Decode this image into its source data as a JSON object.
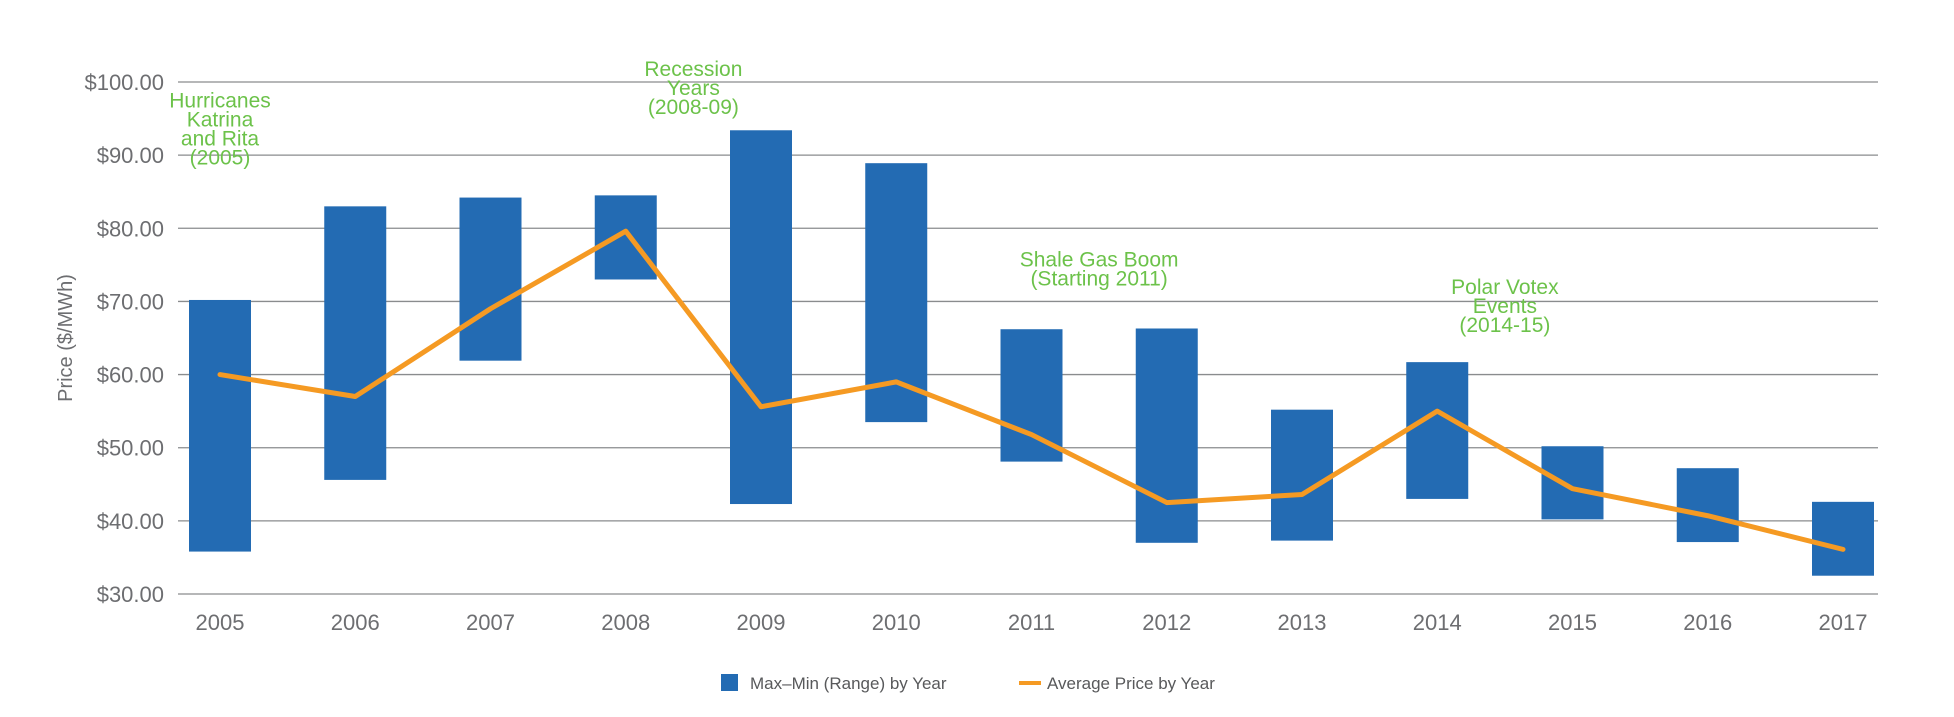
{
  "chart_data": {
    "type": "bar",
    "subtype": "floating-range-with-line",
    "categories": [
      "2005",
      "2006",
      "2007",
      "2008",
      "2009",
      "2010",
      "2011",
      "2012",
      "2013",
      "2014",
      "2015",
      "2016",
      "2017"
    ],
    "series": [
      {
        "name": "Max–Min (Range) by Year",
        "type": "range-bar",
        "color": "#236bb3",
        "max": [
          70.2,
          83.0,
          84.2,
          84.5,
          93.4,
          88.9,
          66.2,
          66.3,
          55.2,
          61.7,
          50.2,
          47.2,
          42.6
        ],
        "min": [
          35.8,
          45.6,
          61.9,
          73.0,
          42.3,
          53.5,
          48.1,
          37.0,
          37.3,
          43.0,
          40.2,
          37.1,
          32.5
        ]
      },
      {
        "name": "Average Price by Year",
        "type": "line",
        "color": "#f59a23",
        "values": [
          60.0,
          57.0,
          69.0,
          79.6,
          55.6,
          59.0,
          51.8,
          42.5,
          43.6,
          55.0,
          44.4,
          40.7,
          36.1
        ]
      }
    ],
    "ylabel": "Price ($/MWh)",
    "ylim": [
      30,
      100
    ],
    "yticks": [
      30,
      40,
      50,
      60,
      70,
      80,
      90,
      100
    ],
    "ytick_labels": [
      "$30.00",
      "$40.00",
      "$50.00",
      "$60.00",
      "$70.00",
      "$80.00",
      "$90.00",
      "$100.00"
    ],
    "grid": true,
    "legend_position": "bottom-center",
    "annotation_color": "#6cc24a",
    "annotations": [
      {
        "category": "2005",
        "value": 96.5,
        "lines": [
          "Hurricanes",
          "Katrina",
          "and Rita",
          "(2005)"
        ]
      },
      {
        "category": "2008.5",
        "value": 100.8,
        "lines": [
          "Recession",
          "Years",
          "(2008-09)"
        ]
      },
      {
        "category": "2011.5",
        "value": 74.8,
        "lines": [
          "Shale Gas Boom",
          "(Starting 2011)"
        ]
      },
      {
        "category": "2014.5",
        "value": 71.0,
        "lines": [
          "Polar Votex",
          "Events",
          "(2014-15)"
        ]
      }
    ]
  }
}
